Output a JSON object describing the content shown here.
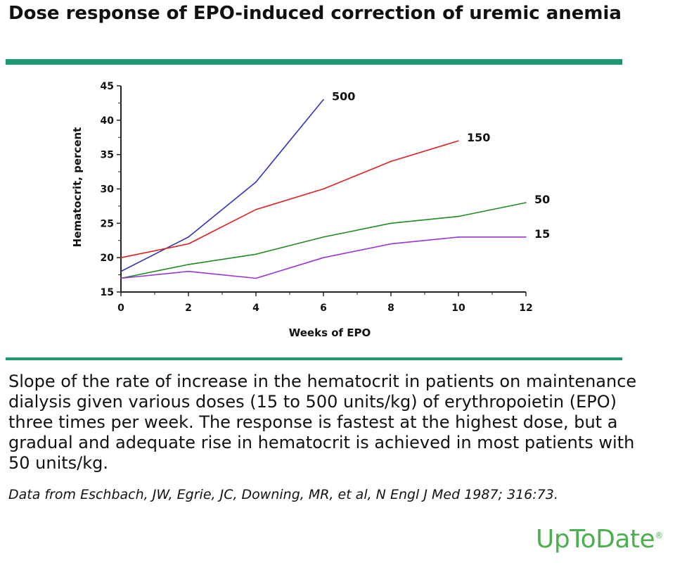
{
  "header": {
    "title": "Dose response of EPO-induced correction of uremic anemia"
  },
  "caption": {
    "text": "Slope of the rate of increase in the hematocrit in patients on maintenance dialysis given various doses (15 to 500 units/kg) of erythropoietin (EPO) three times per week. The response is fastest at the highest dose, but a gradual and adequate rise in hematocrit is achieved in most patients with 50 units/kg.",
    "citation": "Data from Eschbach, JW, Egrie, JC, Downing, MR, et al, N Engl J Med 1987; 316:73."
  },
  "brand": {
    "name": "UpToDate",
    "mark": "®",
    "color": "#4caf50",
    "rule_color": "#1a9a6a"
  },
  "chart_data": {
    "type": "line",
    "title": "",
    "xlabel": "Weeks of EPO",
    "ylabel": "Hematocrit, percent",
    "xlim": [
      0,
      12
    ],
    "ylim": [
      15,
      45
    ],
    "xticks": [
      0,
      2,
      4,
      6,
      8,
      10,
      12
    ],
    "yticks": [
      15,
      20,
      25,
      30,
      35,
      40,
      45
    ],
    "grid": false,
    "legend": "inline labels at line ends",
    "series": [
      {
        "name": "500",
        "color": "#3333bb",
        "points": [
          [
            0,
            18
          ],
          [
            2,
            23
          ],
          [
            4,
            31
          ],
          [
            6,
            43
          ]
        ]
      },
      {
        "name": "150",
        "color": "#e02020",
        "points": [
          [
            0,
            20
          ],
          [
            2,
            22
          ],
          [
            4,
            27
          ],
          [
            6,
            30
          ],
          [
            8,
            34
          ],
          [
            10,
            37
          ]
        ]
      },
      {
        "name": "50",
        "color": "#1e8c1e",
        "points": [
          [
            0,
            17
          ],
          [
            2,
            19
          ],
          [
            4,
            20.5
          ],
          [
            6,
            23
          ],
          [
            8,
            25
          ],
          [
            10,
            26
          ],
          [
            12,
            28
          ]
        ]
      },
      {
        "name": "15",
        "color": "#9933dd",
        "points": [
          [
            0,
            17
          ],
          [
            2,
            18
          ],
          [
            4,
            17
          ],
          [
            6,
            20
          ],
          [
            8,
            22
          ],
          [
            10,
            23
          ],
          [
            12,
            23
          ]
        ]
      }
    ]
  }
}
